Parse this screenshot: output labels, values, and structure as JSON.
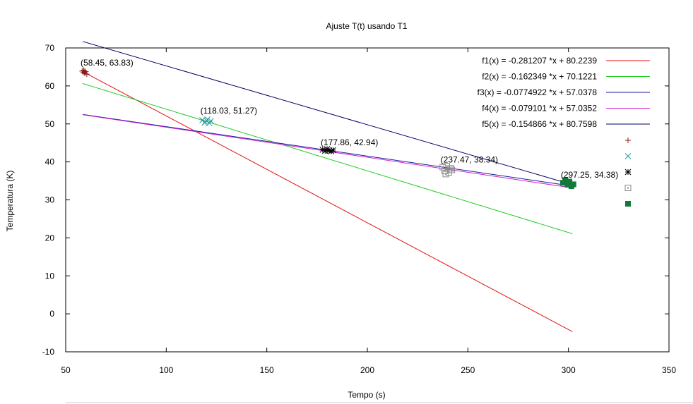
{
  "chart_data": {
    "type": "scatter",
    "title": "Ajuste T(t) usando T1",
    "xlabel": "Tempo (s)",
    "ylabel": "Temperatura (K)",
    "xlim": [
      50,
      350
    ],
    "ylim": [
      -10,
      70
    ],
    "xticks": [
      50,
      100,
      150,
      200,
      250,
      300,
      350
    ],
    "yticks": [
      -10,
      0,
      10,
      20,
      30,
      40,
      50,
      60,
      70
    ],
    "grid": false,
    "legend_position": "top-right",
    "lines": [
      {
        "name": "f1(x) = -0.281207 *x + 80.2239",
        "slope": -0.281207,
        "intercept": 80.2239,
        "x_range": [
          58.45,
          302
        ],
        "color": "#e01010"
      },
      {
        "name": "f2(x) = -0.162349 *x + 70.1221",
        "slope": -0.162349,
        "intercept": 70.1221,
        "x_range": [
          58.45,
          302
        ],
        "color": "#22cc22"
      },
      {
        "name": "f3(x) = -0.0774922 *x + 57.0378",
        "slope": -0.0774922,
        "intercept": 57.0378,
        "x_range": [
          58.45,
          302
        ],
        "color": "#1a1a9a"
      },
      {
        "name": "f4(x) = -0.079101 *x + 57.0352",
        "slope": -0.079101,
        "intercept": 57.0352,
        "x_range": [
          58.45,
          302
        ],
        "color": "#d21fd2"
      },
      {
        "name": "f5(x) = -0.154866 *x + 80.7598",
        "slope": -0.154866,
        "intercept": 80.7598,
        "x_range": [
          58.45,
          302
        ],
        "color": "#000066"
      }
    ],
    "point_groups": [
      {
        "marker": "plus",
        "color": "#8b1a1a",
        "points": [
          [
            58.2,
            63.9
          ],
          [
            58.7,
            63.5
          ],
          [
            59.1,
            64.0
          ],
          [
            59.6,
            63.3
          ],
          [
            60.0,
            63.8
          ],
          [
            60.5,
            63.1
          ],
          [
            59.3,
            63.6
          ],
          [
            58.9,
            64.1
          ]
        ]
      },
      {
        "marker": "cross",
        "color": "#2a9a9a",
        "points": [
          [
            118.0,
            51.0
          ],
          [
            119.5,
            50.5
          ],
          [
            120.5,
            51.2
          ],
          [
            121.5,
            50.2
          ],
          [
            122.2,
            50.8
          ],
          [
            119.0,
            50.3
          ],
          [
            120.0,
            50.9
          ]
        ]
      },
      {
        "marker": "star",
        "color": "#000000",
        "points": [
          [
            177.8,
            43.2
          ],
          [
            179.0,
            42.9
          ],
          [
            180.0,
            43.4
          ],
          [
            181.0,
            43.0
          ],
          [
            182.0,
            42.8
          ],
          [
            183.0,
            43.1
          ]
        ]
      },
      {
        "marker": "square-open",
        "color": "#888888",
        "points": [
          [
            237.5,
            38.6
          ],
          [
            238.5,
            37.6
          ],
          [
            239.5,
            38.9
          ],
          [
            240.5,
            37.2
          ],
          [
            241.5,
            38.3
          ],
          [
            239.0,
            36.8
          ],
          [
            242.0,
            37.9
          ]
        ]
      },
      {
        "marker": "square-filled",
        "color": "#117a3a",
        "points": [
          [
            297.3,
            34.5
          ],
          [
            298.5,
            35.2
          ],
          [
            299.5,
            34.0
          ],
          [
            300.5,
            34.8
          ],
          [
            301.5,
            33.6
          ],
          [
            302.5,
            34.1
          ]
        ]
      }
    ],
    "annotations": [
      {
        "text": "(58.45, 63.83)",
        "x": 58.45,
        "y": 63.83
      },
      {
        "text": "(118.03, 51.27)",
        "x": 118.03,
        "y": 51.27
      },
      {
        "text": "(177.86, 42.94)",
        "x": 177.86,
        "y": 42.94
      },
      {
        "text": "(237.47, 38.34)",
        "x": 237.47,
        "y": 38.34
      },
      {
        "text": "(297.25, 34.38)",
        "x": 297.25,
        "y": 34.38
      }
    ]
  }
}
